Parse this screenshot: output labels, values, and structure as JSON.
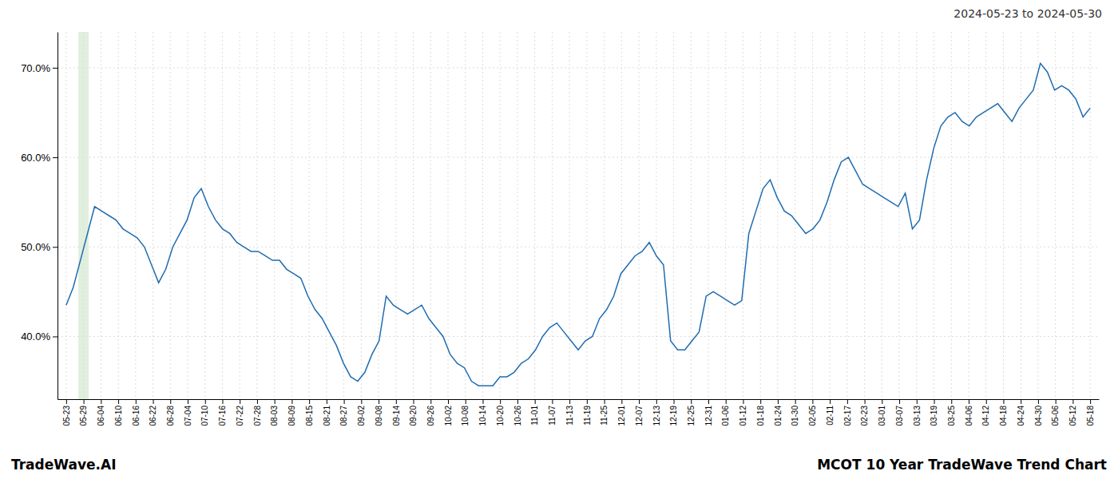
{
  "chart_data": {
    "type": "line",
    "title": "2024-05-23 to 2024-05-30",
    "annotations": [
      "TradeWave.AI",
      "MCOT 10 Year TradeWave Trend Chart"
    ],
    "color": "#1f6cb0",
    "grid": true,
    "highlight": {
      "x": [
        0.7,
        1.3
      ],
      "color": "#d4e8d0"
    },
    "xlim": [
      -0.5,
      59.5
    ],
    "xticks": [
      {
        "value": 0,
        "label": "05-23"
      },
      {
        "value": 1,
        "label": "05-29"
      },
      {
        "value": 2,
        "label": "06-04"
      },
      {
        "value": 3,
        "label": "06-10"
      },
      {
        "value": 4,
        "label": "06-16"
      },
      {
        "value": 5,
        "label": "06-22"
      },
      {
        "value": 6,
        "label": "06-28"
      },
      {
        "value": 7,
        "label": "07-04"
      },
      {
        "value": 8,
        "label": "07-10"
      },
      {
        "value": 9,
        "label": "07-16"
      },
      {
        "value": 10,
        "label": "07-22"
      },
      {
        "value": 11,
        "label": "07-28"
      },
      {
        "value": 12,
        "label": "08-03"
      },
      {
        "value": 13,
        "label": "08-09"
      },
      {
        "value": 14,
        "label": "08-15"
      },
      {
        "value": 15,
        "label": "08-21"
      },
      {
        "value": 16,
        "label": "08-27"
      },
      {
        "value": 17,
        "label": "09-02"
      },
      {
        "value": 18,
        "label": "09-08"
      },
      {
        "value": 19,
        "label": "09-14"
      },
      {
        "value": 20,
        "label": "09-20"
      },
      {
        "value": 21,
        "label": "09-26"
      },
      {
        "value": 22,
        "label": "10-02"
      },
      {
        "value": 23,
        "label": "10-08"
      },
      {
        "value": 24,
        "label": "10-14"
      },
      {
        "value": 25,
        "label": "10-20"
      },
      {
        "value": 26,
        "label": "10-26"
      },
      {
        "value": 27,
        "label": "11-01"
      },
      {
        "value": 28,
        "label": "11-07"
      },
      {
        "value": 29,
        "label": "11-13"
      },
      {
        "value": 30,
        "label": "11-19"
      },
      {
        "value": 31,
        "label": "11-25"
      },
      {
        "value": 32,
        "label": "12-01"
      },
      {
        "value": 33,
        "label": "12-07"
      },
      {
        "value": 34,
        "label": "12-13"
      },
      {
        "value": 35,
        "label": "12-19"
      },
      {
        "value": 36,
        "label": "12-25"
      },
      {
        "value": 37,
        "label": "12-31"
      },
      {
        "value": 38,
        "label": "01-06"
      },
      {
        "value": 39,
        "label": "01-12"
      },
      {
        "value": 40,
        "label": "01-18"
      },
      {
        "value": 41,
        "label": "01-24"
      },
      {
        "value": 42,
        "label": "01-30"
      },
      {
        "value": 43,
        "label": "02-05"
      },
      {
        "value": 44,
        "label": "02-11"
      },
      {
        "value": 45,
        "label": "02-17"
      },
      {
        "value": 46,
        "label": "02-23"
      },
      {
        "value": 47,
        "label": "03-01"
      },
      {
        "value": 48,
        "label": "03-07"
      },
      {
        "value": 49,
        "label": "03-13"
      },
      {
        "value": 50,
        "label": "03-19"
      },
      {
        "value": 51,
        "label": "03-25"
      },
      {
        "value": 52,
        "label": "04-06"
      },
      {
        "value": 53,
        "label": "04-12"
      },
      {
        "value": 54,
        "label": "04-18"
      },
      {
        "value": 55,
        "label": "04-24"
      },
      {
        "value": 56,
        "label": "04-30"
      },
      {
        "value": 57,
        "label": "05-06"
      },
      {
        "value": 58,
        "label": "05-12"
      },
      {
        "value": 59,
        "label": "05-18"
      }
    ],
    "ylim": [
      33,
      74
    ],
    "yticks": [
      {
        "value": 40.0,
        "label": "40.0%"
      },
      {
        "value": 50.0,
        "label": "50.0%"
      },
      {
        "value": 60.0,
        "label": "60.0%"
      },
      {
        "value": 70.0,
        "label": "70.0%"
      }
    ],
    "x": [
      0,
      0.4097,
      0.8194,
      1.2292,
      1.6389,
      2.0486,
      2.4583,
      2.8681,
      3.2778,
      3.6875,
      4.0972,
      4.5069,
      4.9167,
      5.3264,
      5.7361,
      6.1458,
      6.5556,
      6.9653,
      7.375,
      7.7847,
      8.1944,
      8.6042,
      9.0139,
      9.4236,
      9.8333,
      10.2431,
      10.6528,
      11.0625,
      11.4722,
      11.8819,
      12.2917,
      12.7014,
      13.1111,
      13.5208,
      13.9306,
      14.3403,
      14.75,
      15.1597,
      15.5694,
      15.9792,
      16.3889,
      16.7986,
      17.2083,
      17.6181,
      18.0278,
      18.4375,
      18.8472,
      19.2569,
      19.6667,
      20.0764,
      20.4861,
      20.8958,
      21.3056,
      21.7153,
      22.125,
      22.5347,
      22.9444,
      23.3542,
      23.7639,
      24.1736,
      24.5833,
      24.9931,
      25.4028,
      25.8125,
      26.2222,
      26.6319,
      27.0417,
      27.4514,
      27.8611,
      28.2708,
      28.6806,
      29.0903,
      29.5,
      29.9097,
      30.3194,
      30.7292,
      31.1389,
      31.5486,
      31.9583,
      32.3681,
      32.7778,
      33.1875,
      33.5972,
      34.0069,
      34.4167,
      34.8264,
      35.2361,
      35.6458,
      36.0556,
      36.4653,
      36.875,
      37.2847,
      37.6944,
      38.1042,
      38.5139,
      38.9236,
      39.3333,
      39.7431,
      40.1528,
      40.5625,
      40.9722,
      41.3819,
      41.7917,
      42.2014,
      42.6111,
      43.0208,
      43.4306,
      43.8403,
      44.25,
      44.6597,
      45.0694,
      45.4792,
      45.8889,
      46.2986,
      46.7083,
      47.1181,
      47.5278,
      47.9375,
      48.3472,
      48.7569,
      49.1667,
      49.5764,
      49.9861,
      50.3958,
      50.8056,
      51.2153,
      51.625,
      52.0347,
      52.4444,
      52.8542,
      53.2639,
      53.6736,
      54.0833,
      54.4931,
      54.9028,
      55.3125,
      55.7222,
      56.1319,
      56.5417,
      56.9514,
      57.3611,
      57.7708,
      58.1806,
      58.5903,
      59
    ],
    "values": [
      43.5,
      45.5,
      48.5,
      51.5,
      54.5,
      54.0,
      53.5,
      53.0,
      52.0,
      51.5,
      51.0,
      50.0,
      48.0,
      46.0,
      47.5,
      50.0,
      51.5,
      53.0,
      55.5,
      56.5,
      54.5,
      53.0,
      52.0,
      51.5,
      50.5,
      50.0,
      49.5,
      49.5,
      49.0,
      48.5,
      48.5,
      47.5,
      47.0,
      46.5,
      44.5,
      43.0,
      42.0,
      40.5,
      39.0,
      37.0,
      35.5,
      35.0,
      36.0,
      38.0,
      39.5,
      44.5,
      43.5,
      43.0,
      42.5,
      43.0,
      43.5,
      42.0,
      41.0,
      40.0,
      38.0,
      37.0,
      36.5,
      35.0,
      34.5,
      34.5,
      34.5,
      35.5,
      35.5,
      36.0,
      37.0,
      37.5,
      38.5,
      40.0,
      41.0,
      41.5,
      40.5,
      39.5,
      38.5,
      39.5,
      40.0,
      42.0,
      43.0,
      44.5,
      47.0,
      48.0,
      49.0,
      49.5,
      50.5,
      49.0,
      48.0,
      39.5,
      38.5,
      38.5,
      39.5,
      40.5,
      44.5,
      45.0,
      44.5,
      44.0,
      43.5,
      44.0,
      51.5,
      54.0,
      56.5,
      57.5,
      55.5,
      54.0,
      53.5,
      52.5,
      51.5,
      52.0,
      53.0,
      55.0,
      57.5,
      59.5,
      60.0,
      58.5,
      57.0,
      56.5,
      56.0,
      55.5,
      55.0,
      54.5,
      56.0,
      52.0,
      53.0,
      57.5,
      61.0,
      63.5,
      64.5,
      65.0,
      64.0,
      63.5,
      64.5,
      65.0,
      65.5,
      66.0,
      65.0,
      64.0,
      65.5,
      66.5,
      67.5,
      70.5,
      69.5,
      67.5,
      68.0,
      67.5,
      66.5,
      64.5,
      65.5
    ]
  }
}
